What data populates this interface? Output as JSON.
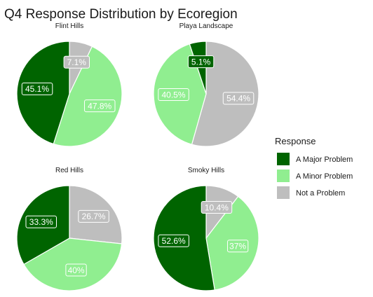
{
  "chart_data": {
    "type": "pie",
    "title": "Q4 Response Distribution by Ecoregion",
    "legend": {
      "title": "Response",
      "placement": "right",
      "entries": [
        {
          "label": "A Major Problem",
          "color": "#006400"
        },
        {
          "label": "A Minor Problem",
          "color": "#90ee90"
        },
        {
          "label": "Not a Problem",
          "color": "#bebebe"
        }
      ]
    },
    "facets": [
      {
        "title": "Flint Hills",
        "slices": [
          {
            "category": "A Major Problem",
            "value": 45.1,
            "label": "45.1%"
          },
          {
            "category": "A Minor Problem",
            "value": 47.8,
            "label": "47.8%"
          },
          {
            "category": "Not a Problem",
            "value": 7.1,
            "label": "7.1%"
          }
        ]
      },
      {
        "title": "Playa Landscape",
        "slices": [
          {
            "category": "A Major Problem",
            "value": 5.1,
            "label": "5.1%"
          },
          {
            "category": "A Minor Problem",
            "value": 40.5,
            "label": "40.5%"
          },
          {
            "category": "Not a Problem",
            "value": 54.4,
            "label": "54.4%"
          }
        ]
      },
      {
        "title": "Red Hills",
        "slices": [
          {
            "category": "A Major Problem",
            "value": 33.3,
            "label": "33.3%"
          },
          {
            "category": "A Minor Problem",
            "value": 40,
            "label": "40%"
          },
          {
            "category": "Not a Problem",
            "value": 26.7,
            "label": "26.7%"
          }
        ]
      },
      {
        "title": "Smoky Hills",
        "slices": [
          {
            "category": "A Major Problem",
            "value": 52.6,
            "label": "52.6%"
          },
          {
            "category": "A Minor Problem",
            "value": 37,
            "label": "37%"
          },
          {
            "category": "Not a Problem",
            "value": 10.4,
            "label": "10.4%"
          }
        ]
      }
    ]
  }
}
